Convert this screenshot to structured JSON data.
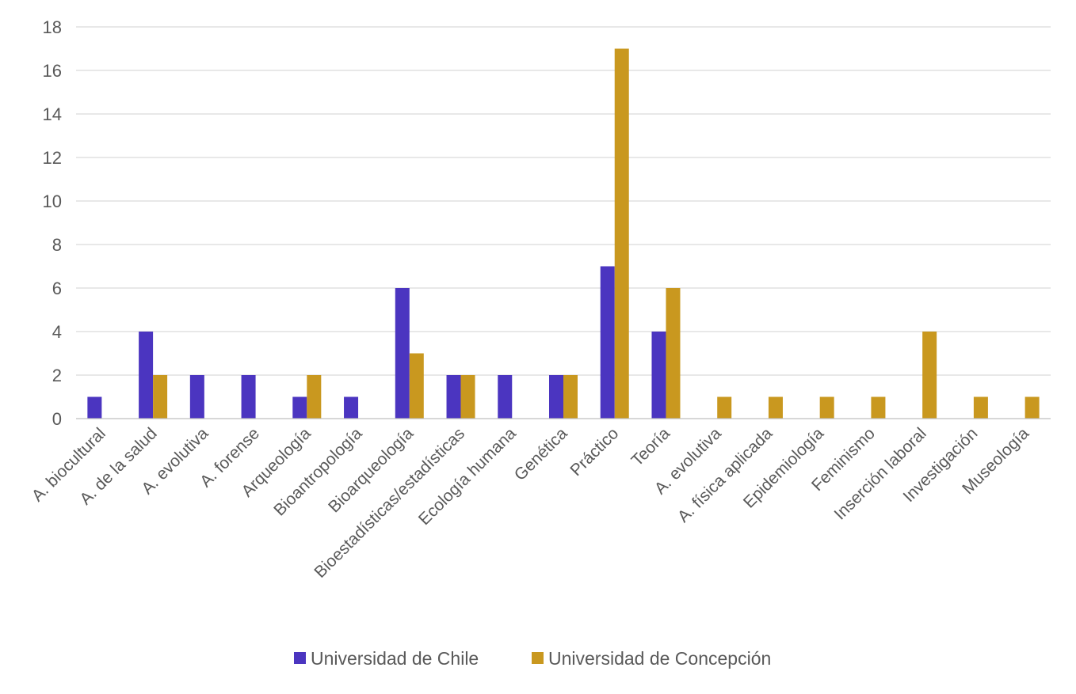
{
  "chart_data": {
    "type": "bar",
    "title": "",
    "xlabel": "",
    "ylabel": "",
    "ylim": [
      0,
      18
    ],
    "yticks": [
      0,
      2,
      4,
      6,
      8,
      10,
      12,
      14,
      16,
      18
    ],
    "grid": true,
    "legend_position": "bottom",
    "categories": [
      "A. biocultural",
      "A. de la salud",
      "A. evolutiva",
      "A. forense",
      "Arqueología",
      "Bioantropología",
      "Bioarqueología",
      "Bioestadísticas/estadísticas",
      "Ecología humana",
      "Genética",
      "Práctico",
      "Teoría",
      "A. evolutiva",
      "A. física aplicada",
      "Epidemiología",
      "Feminismo",
      "Inserción laboral",
      "Investigación",
      "Museología"
    ],
    "series": [
      {
        "name": "Universidad de Chile",
        "color": "#4b35c0",
        "values": [
          1,
          4,
          2,
          2,
          1,
          1,
          6,
          2,
          2,
          2,
          7,
          4,
          0,
          0,
          0,
          0,
          0,
          0,
          0
        ]
      },
      {
        "name": "Universidad de Concepción",
        "color": "#c9981f",
        "values": [
          0,
          2,
          0,
          0,
          2,
          0,
          3,
          2,
          0,
          2,
          17,
          6,
          1,
          1,
          1,
          1,
          4,
          1,
          1
        ]
      }
    ]
  }
}
